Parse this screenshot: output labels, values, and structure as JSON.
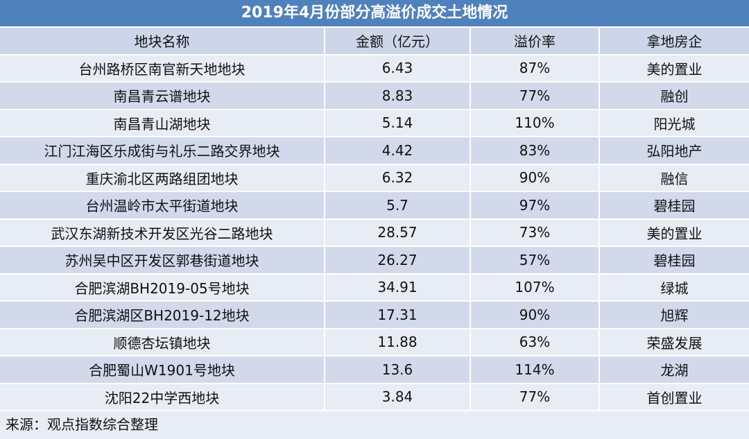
{
  "title": "2019年4月份部分高溢价成交土地情况",
  "columns": [
    "地块名称",
    "金额（亿元）",
    "溢价率",
    "拿地房企"
  ],
  "rows": [
    [
      "台州路桥区南官新天地地块",
      "6.43",
      "87%",
      "美的置业"
    ],
    [
      "南昌青云谱地块",
      "8.83",
      "77%",
      "融创"
    ],
    [
      "南昌青山湖地块",
      "5.14",
      "110%",
      "阳光城"
    ],
    [
      "江门江海区乐成街与礼乐二路交界地块",
      "4.42",
      "83%",
      "弘阳地产"
    ],
    [
      "重庆渝北区两路组团地块",
      "6.32",
      "90%",
      "融信"
    ],
    [
      "台州温岭市太平街道地块",
      "5.7",
      "97%",
      "碧桂园"
    ],
    [
      "武汉东湖新技术开发区光谷二路地块",
      "28.57",
      "73%",
      "美的置业"
    ],
    [
      "苏州吴中区开发区郭巷街道地块",
      "26.27",
      "57%",
      "碧桂园"
    ],
    [
      "合肥滨湖BH2019-05号地块",
      "34.91",
      "107%",
      "绿城"
    ],
    [
      "合肥滨湖区BH2019-12地块",
      "17.31",
      "90%",
      "旭辉"
    ],
    [
      "顺德杏坛镇地块",
      "11.88",
      "63%",
      "荣盛发展"
    ],
    [
      "合肥蜀山W1901号地块",
      "13.6",
      "114%",
      "龙湖"
    ],
    [
      "沈阳22中学西地块",
      "3.84",
      "77%",
      "首创置业"
    ]
  ],
  "source": "来源：观点指数综合整理",
  "colors": {
    "title_bg": "#4f81bd",
    "header_bg": "#cdd6e9",
    "row_light": "#e8ecf5",
    "row_dark": "#d1d9eb"
  }
}
